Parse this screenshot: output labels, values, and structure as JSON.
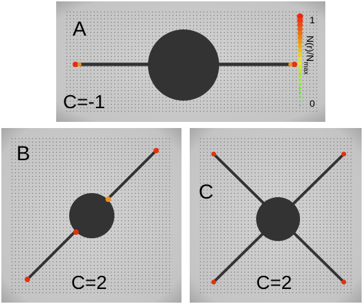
{
  "panels": [
    {
      "label": "A",
      "annotation": "C=-1"
    },
    {
      "label": "B",
      "annotation": "C=2"
    },
    {
      "label": "C",
      "annotation": "C=2"
    }
  ],
  "colorbar": {
    "title": "N(r)/N",
    "title_sub": "max",
    "top_label": "1",
    "bottom_label": "0"
  }
}
